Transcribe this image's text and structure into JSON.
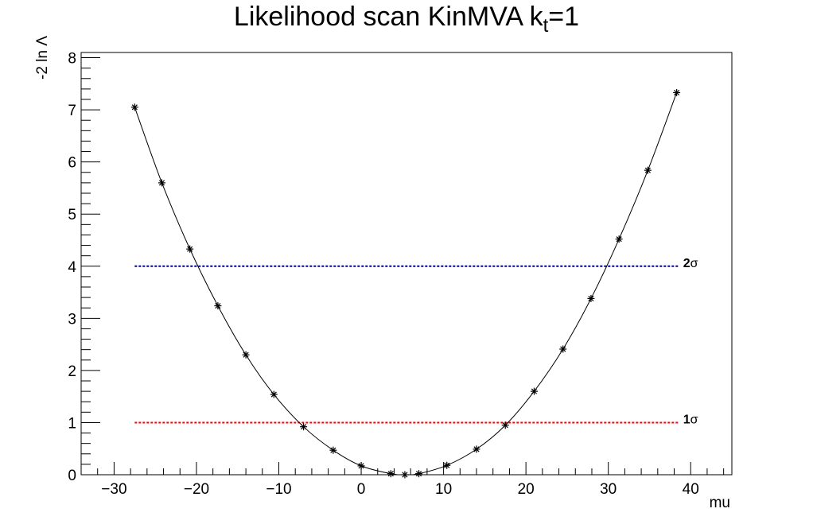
{
  "chart_data": {
    "type": "line",
    "title_main": "Likelihood scan KinMVA k",
    "title_sub": "t",
    "title_tail": "=1",
    "xlabel": "mu",
    "ylabel": "-2 ln Λ",
    "xlim": [
      -34,
      45
    ],
    "ylim": [
      0,
      8.1
    ],
    "xticks": [
      -30,
      -20,
      -10,
      0,
      10,
      20,
      30,
      40
    ],
    "xtick_labels": [
      "−30",
      "−20",
      "−10",
      "0",
      "10",
      "20",
      "30",
      "40"
    ],
    "yticks": [
      0,
      1,
      2,
      3,
      4,
      5,
      6,
      7,
      8
    ],
    "grid": false,
    "series": [
      {
        "marker": "star",
        "color": "#000000",
        "x": [
          -27.5,
          -24.2,
          -20.8,
          -17.4,
          -14,
          -10.6,
          -7,
          -3.4,
          0,
          3.6,
          5.3,
          7,
          10.4,
          14,
          17.5,
          21,
          24.5,
          27.9,
          31.3,
          34.8,
          38.3
        ],
        "y": [
          7.05,
          5.6,
          4.33,
          3.24,
          2.3,
          1.54,
          0.92,
          0.47,
          0.17,
          0.02,
          0.0,
          0.02,
          0.18,
          0.49,
          0.95,
          1.6,
          2.41,
          3.38,
          4.52,
          5.84,
          7.33
        ]
      }
    ],
    "reference_lines": [
      {
        "y": 4,
        "x_start": -27.5,
        "x_end": 38.5,
        "color": "#00008b",
        "label_num": "2",
        "label_sym": "σ"
      },
      {
        "y": 1,
        "x_start": -27.5,
        "x_end": 38.5,
        "color": "#ff0000",
        "label_num": "1",
        "label_sym": "σ"
      }
    ]
  }
}
